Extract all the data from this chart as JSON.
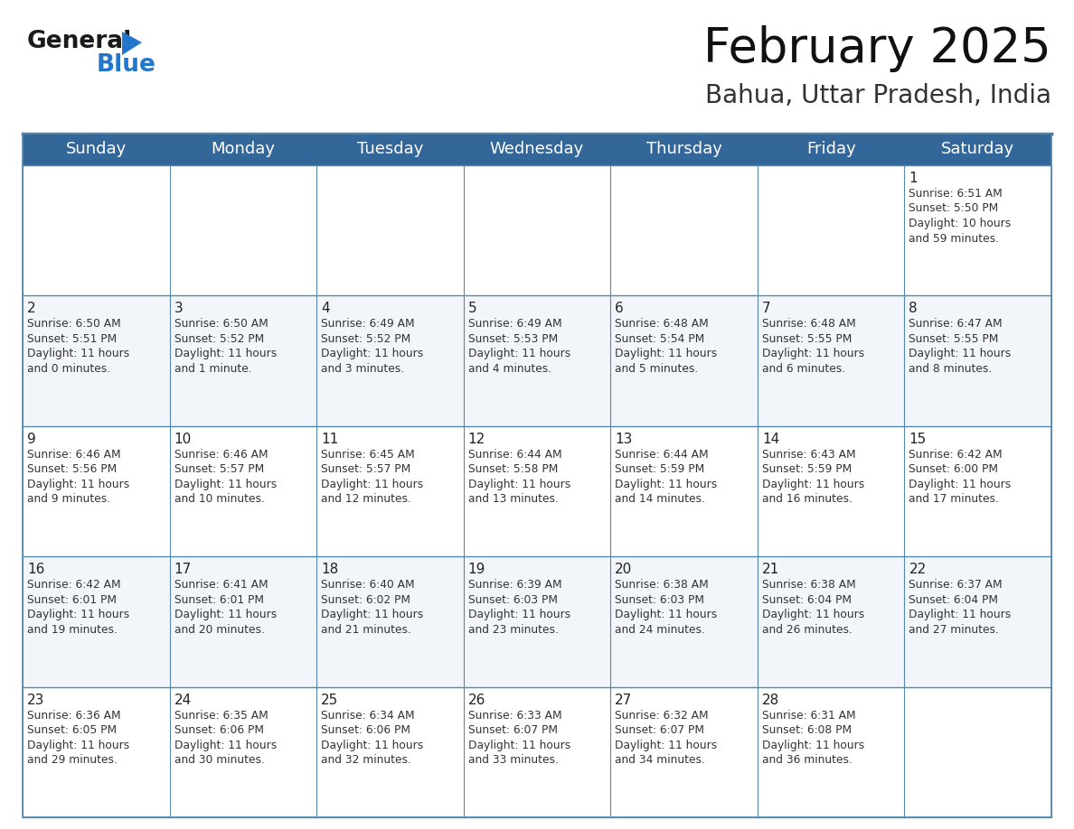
{
  "title": "February 2025",
  "subtitle": "Bahua, Uttar Pradesh, India",
  "header_color": "#336699",
  "header_text_color": "#FFFFFF",
  "row_bg_light": "#F2F6FA",
  "row_bg_white": "#FFFFFF",
  "grid_line_color": "#5588AA",
  "day_headers": [
    "Sunday",
    "Monday",
    "Tuesday",
    "Wednesday",
    "Thursday",
    "Friday",
    "Saturday"
  ],
  "title_fontsize": 38,
  "subtitle_fontsize": 20,
  "header_fontsize": 13,
  "day_num_fontsize": 11,
  "cell_fontsize": 8.8,
  "logo_general_color": "#1A1A1A",
  "logo_blue_color": "#2277CC",
  "logo_triangle_color": "#2277CC",
  "week_data": [
    [
      {
        "day": null,
        "info": null
      },
      {
        "day": null,
        "info": null
      },
      {
        "day": null,
        "info": null
      },
      {
        "day": null,
        "info": null
      },
      {
        "day": null,
        "info": null
      },
      {
        "day": null,
        "info": null
      },
      {
        "day": 1,
        "info": "Sunrise: 6:51 AM\nSunset: 5:50 PM\nDaylight: 10 hours\nand 59 minutes."
      }
    ],
    [
      {
        "day": 2,
        "info": "Sunrise: 6:50 AM\nSunset: 5:51 PM\nDaylight: 11 hours\nand 0 minutes."
      },
      {
        "day": 3,
        "info": "Sunrise: 6:50 AM\nSunset: 5:52 PM\nDaylight: 11 hours\nand 1 minute."
      },
      {
        "day": 4,
        "info": "Sunrise: 6:49 AM\nSunset: 5:52 PM\nDaylight: 11 hours\nand 3 minutes."
      },
      {
        "day": 5,
        "info": "Sunrise: 6:49 AM\nSunset: 5:53 PM\nDaylight: 11 hours\nand 4 minutes."
      },
      {
        "day": 6,
        "info": "Sunrise: 6:48 AM\nSunset: 5:54 PM\nDaylight: 11 hours\nand 5 minutes."
      },
      {
        "day": 7,
        "info": "Sunrise: 6:48 AM\nSunset: 5:55 PM\nDaylight: 11 hours\nand 6 minutes."
      },
      {
        "day": 8,
        "info": "Sunrise: 6:47 AM\nSunset: 5:55 PM\nDaylight: 11 hours\nand 8 minutes."
      }
    ],
    [
      {
        "day": 9,
        "info": "Sunrise: 6:46 AM\nSunset: 5:56 PM\nDaylight: 11 hours\nand 9 minutes."
      },
      {
        "day": 10,
        "info": "Sunrise: 6:46 AM\nSunset: 5:57 PM\nDaylight: 11 hours\nand 10 minutes."
      },
      {
        "day": 11,
        "info": "Sunrise: 6:45 AM\nSunset: 5:57 PM\nDaylight: 11 hours\nand 12 minutes."
      },
      {
        "day": 12,
        "info": "Sunrise: 6:44 AM\nSunset: 5:58 PM\nDaylight: 11 hours\nand 13 minutes."
      },
      {
        "day": 13,
        "info": "Sunrise: 6:44 AM\nSunset: 5:59 PM\nDaylight: 11 hours\nand 14 minutes."
      },
      {
        "day": 14,
        "info": "Sunrise: 6:43 AM\nSunset: 5:59 PM\nDaylight: 11 hours\nand 16 minutes."
      },
      {
        "day": 15,
        "info": "Sunrise: 6:42 AM\nSunset: 6:00 PM\nDaylight: 11 hours\nand 17 minutes."
      }
    ],
    [
      {
        "day": 16,
        "info": "Sunrise: 6:42 AM\nSunset: 6:01 PM\nDaylight: 11 hours\nand 19 minutes."
      },
      {
        "day": 17,
        "info": "Sunrise: 6:41 AM\nSunset: 6:01 PM\nDaylight: 11 hours\nand 20 minutes."
      },
      {
        "day": 18,
        "info": "Sunrise: 6:40 AM\nSunset: 6:02 PM\nDaylight: 11 hours\nand 21 minutes."
      },
      {
        "day": 19,
        "info": "Sunrise: 6:39 AM\nSunset: 6:03 PM\nDaylight: 11 hours\nand 23 minutes."
      },
      {
        "day": 20,
        "info": "Sunrise: 6:38 AM\nSunset: 6:03 PM\nDaylight: 11 hours\nand 24 minutes."
      },
      {
        "day": 21,
        "info": "Sunrise: 6:38 AM\nSunset: 6:04 PM\nDaylight: 11 hours\nand 26 minutes."
      },
      {
        "day": 22,
        "info": "Sunrise: 6:37 AM\nSunset: 6:04 PM\nDaylight: 11 hours\nand 27 minutes."
      }
    ],
    [
      {
        "day": 23,
        "info": "Sunrise: 6:36 AM\nSunset: 6:05 PM\nDaylight: 11 hours\nand 29 minutes."
      },
      {
        "day": 24,
        "info": "Sunrise: 6:35 AM\nSunset: 6:06 PM\nDaylight: 11 hours\nand 30 minutes."
      },
      {
        "day": 25,
        "info": "Sunrise: 6:34 AM\nSunset: 6:06 PM\nDaylight: 11 hours\nand 32 minutes."
      },
      {
        "day": 26,
        "info": "Sunrise: 6:33 AM\nSunset: 6:07 PM\nDaylight: 11 hours\nand 33 minutes."
      },
      {
        "day": 27,
        "info": "Sunrise: 6:32 AM\nSunset: 6:07 PM\nDaylight: 11 hours\nand 34 minutes."
      },
      {
        "day": 28,
        "info": "Sunrise: 6:31 AM\nSunset: 6:08 PM\nDaylight: 11 hours\nand 36 minutes."
      },
      {
        "day": null,
        "info": null
      }
    ]
  ]
}
